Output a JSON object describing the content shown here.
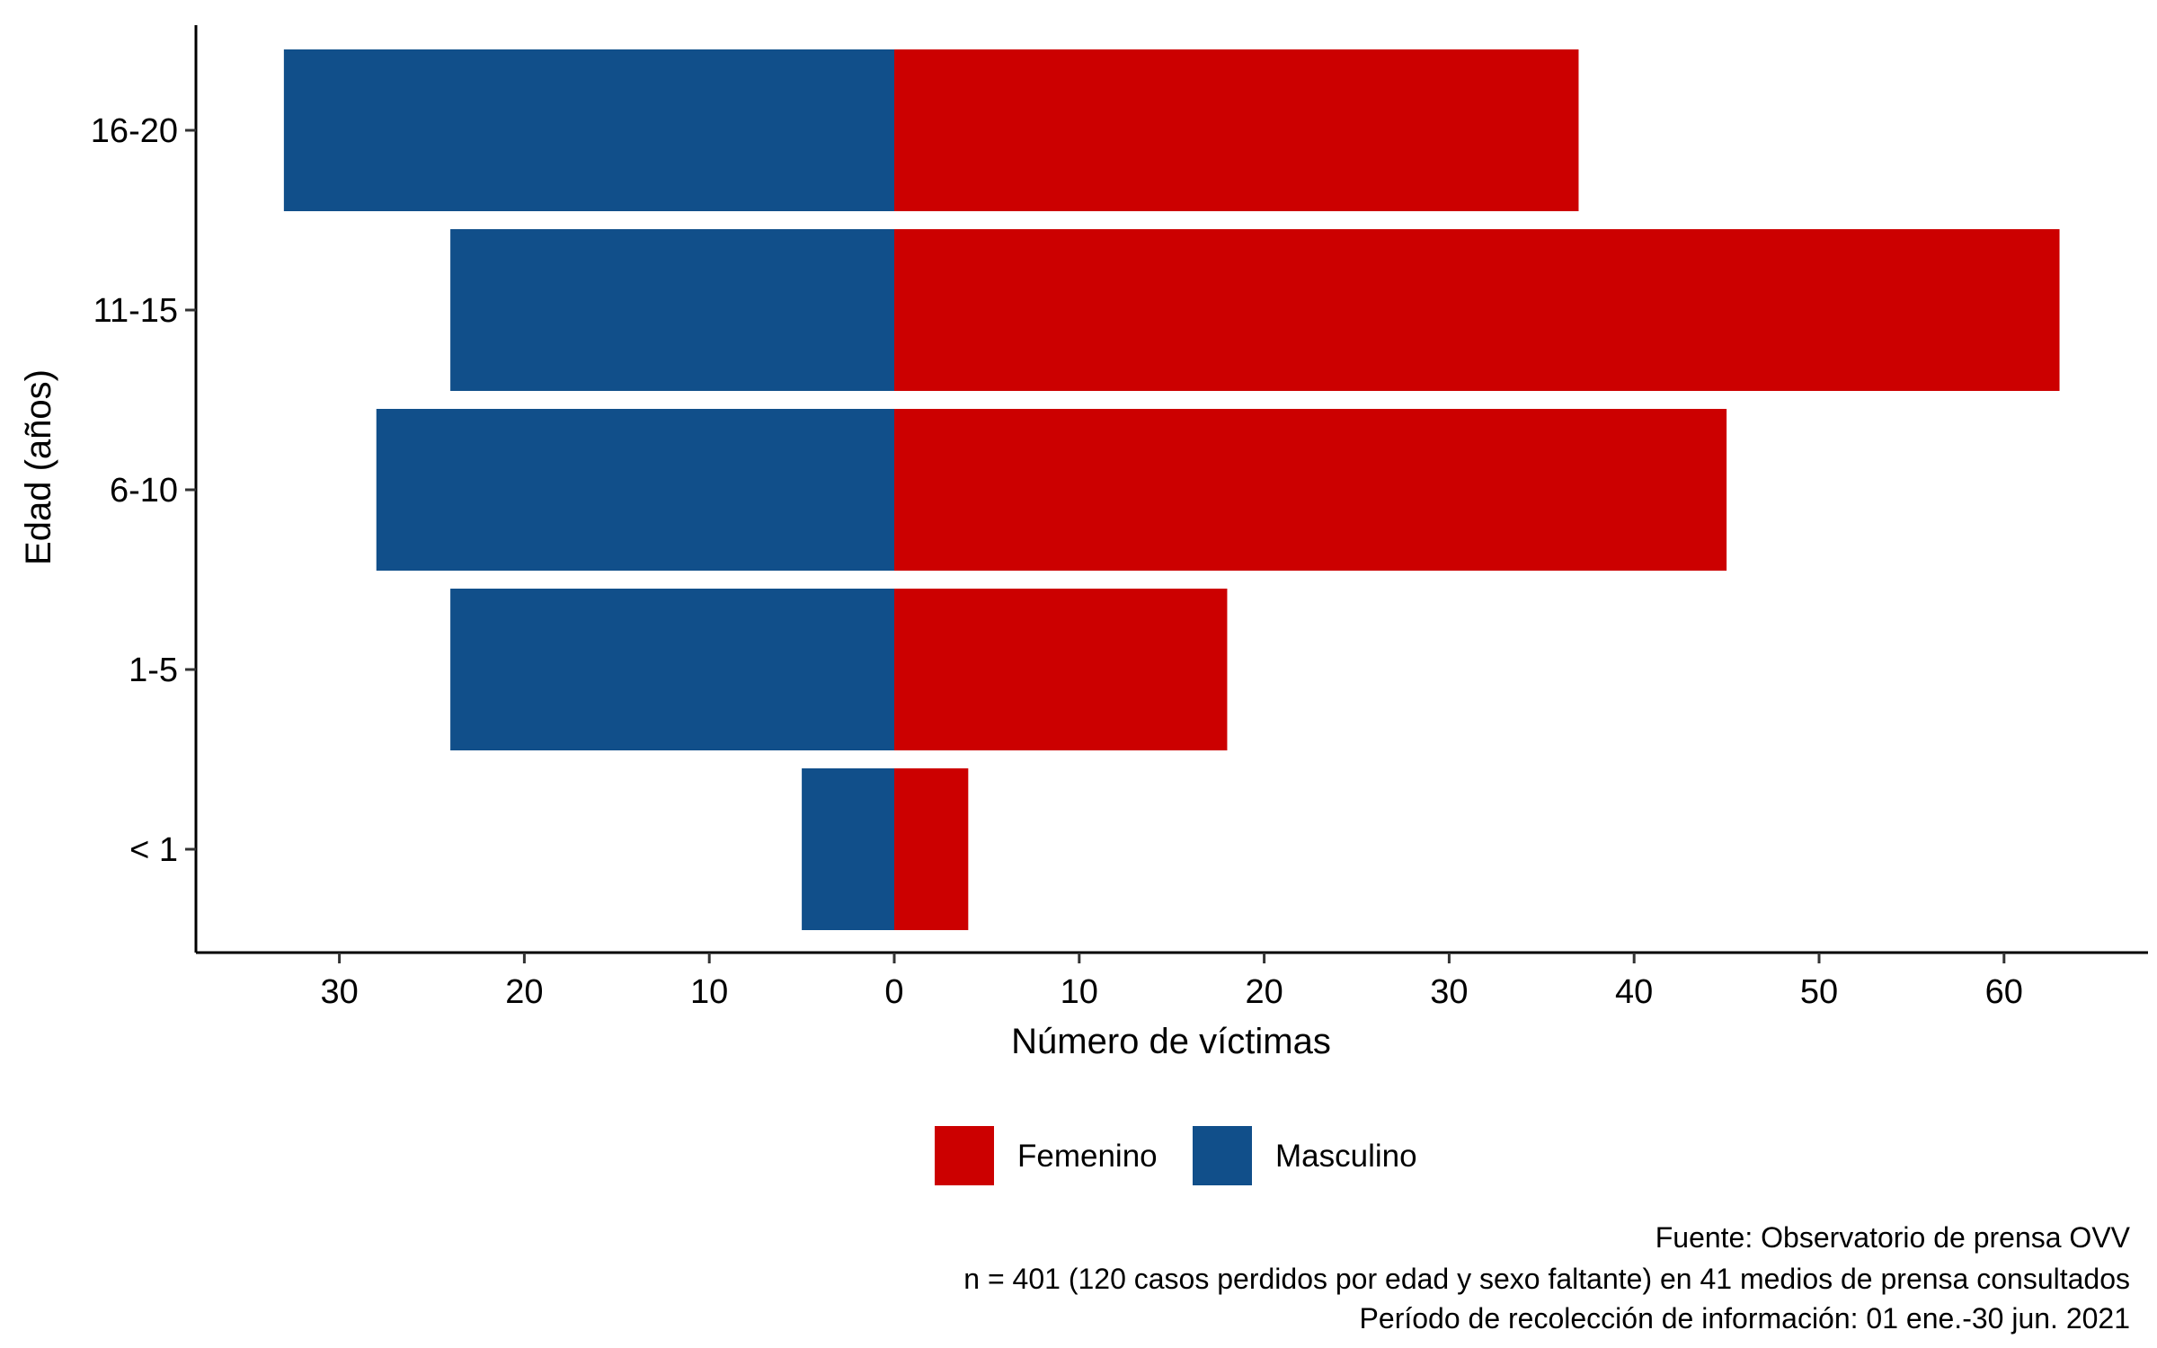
{
  "chart_data": {
    "type": "bar",
    "orientation": "horizontal",
    "layout": "population-pyramid",
    "categories": [
      "< 1",
      "1-5",
      "6-10",
      "11-15",
      "16-20"
    ],
    "series": [
      {
        "name": "Femenino",
        "color": "#CC0000",
        "side": "right",
        "values": [
          4,
          18,
          45,
          63,
          37
        ]
      },
      {
        "name": "Masculino",
        "color": "#114F8A",
        "side": "left",
        "values": [
          5,
          24,
          28,
          24,
          33
        ]
      }
    ],
    "xlabel": "Número de víctimas",
    "ylabel": "Edad (años)",
    "xlim": [
      -37.5,
      67.3
    ],
    "xticks": [
      -30,
      -20,
      -10,
      0,
      10,
      20,
      30,
      40,
      50,
      60
    ],
    "xtick_labels": [
      "30",
      "20",
      "10",
      "0",
      "10",
      "20",
      "30",
      "40",
      "50",
      "60"
    ],
    "grid": false,
    "legend_position": "bottom",
    "caption": [
      "Fuente: Observatorio de prensa OVV",
      "n = 401 (120 casos perdidos por edad y sexo faltante) en 41 medios de prensa consultados",
      "Período de recolección de información: 01 ene.-30 jun. 2021"
    ]
  }
}
